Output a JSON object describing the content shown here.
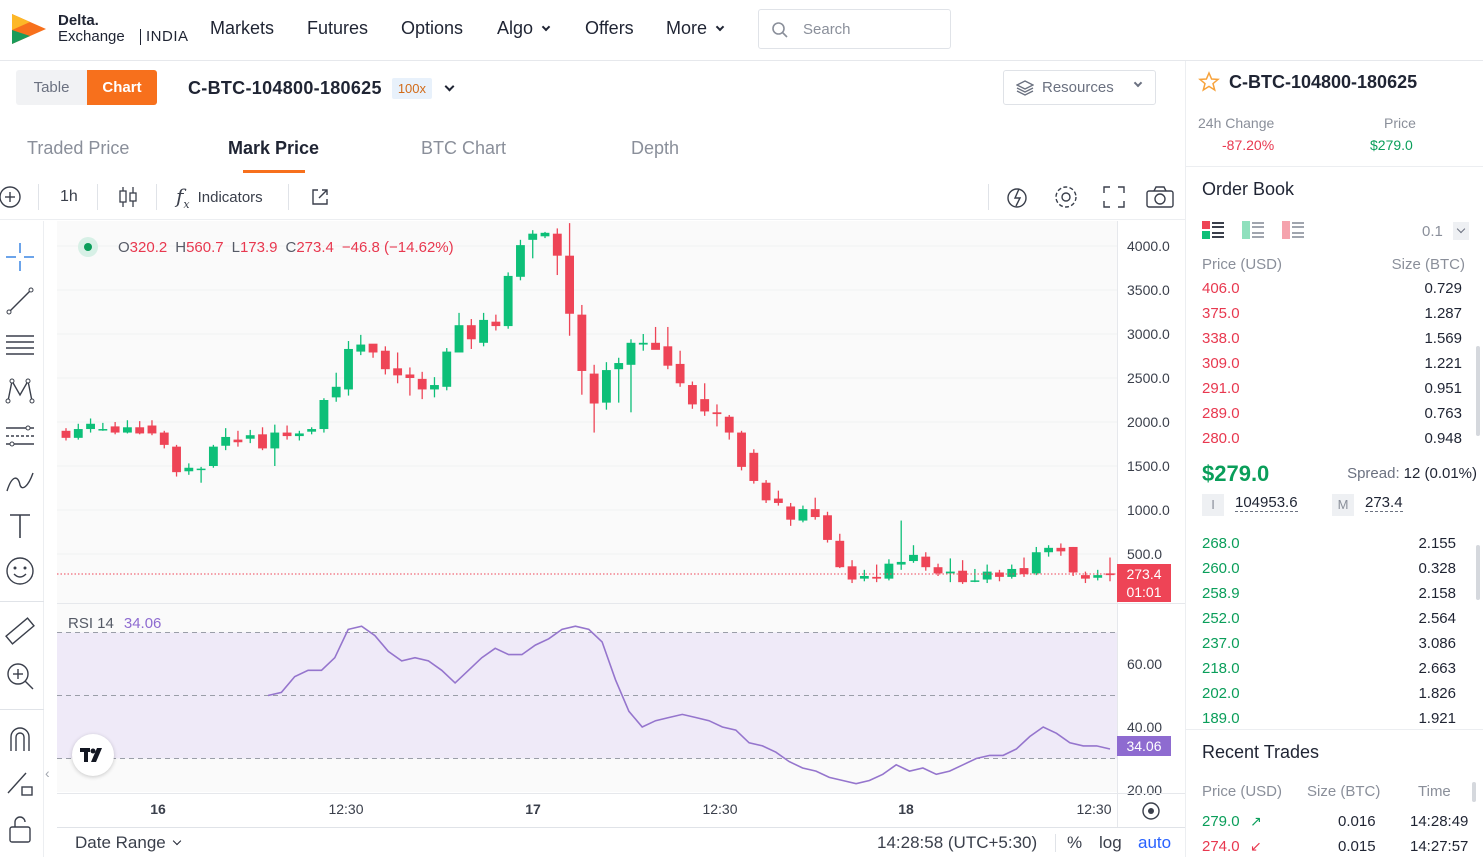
{
  "brand": {
    "name": "Delta.",
    "sub": "Exchange",
    "region": "INDIA"
  },
  "nav": [
    {
      "label": "Markets",
      "dropdown": false
    },
    {
      "label": "Futures",
      "dropdown": false
    },
    {
      "label": "Options",
      "dropdown": false
    },
    {
      "label": "Algo",
      "dropdown": true
    },
    {
      "label": "Offers",
      "dropdown": false
    },
    {
      "label": "More",
      "dropdown": true
    }
  ],
  "search": {
    "placeholder": "Search"
  },
  "view_toggle": {
    "table": "Table",
    "chart": "Chart"
  },
  "symbol": {
    "name": "C-BTC-104800-180625",
    "leverage": "100x"
  },
  "resources": {
    "label": "Resources"
  },
  "chart_tabs": [
    "Traded Price",
    "Mark Price",
    "BTC Chart",
    "Depth"
  ],
  "active_tab": "Mark Price",
  "chart_toolbar": {
    "interval": "1h",
    "indicators": "Indicators"
  },
  "ohlc": {
    "o_label": "O",
    "o": "320.2",
    "h_label": "H",
    "h": "560.7",
    "l_label": "L",
    "l": "173.9",
    "c_label": "C",
    "c": "273.4",
    "change": "−46.8 (−14.62%)"
  },
  "rsi": {
    "label": "RSI 14",
    "value": "34.06"
  },
  "price_badge": {
    "price": "273.4",
    "timer": "01:01"
  },
  "price_axis": [
    "4000.0",
    "3500.0",
    "3000.0",
    "2500.0",
    "2000.0",
    "1500.0",
    "1000.0",
    "500.0"
  ],
  "rsi_axis": [
    "60.00",
    "40.00",
    "20.00"
  ],
  "time_axis": [
    "16",
    "12:30",
    "17",
    "12:30",
    "18",
    "12:30"
  ],
  "bottom_bar": {
    "date_range": "Date Range",
    "clock": "14:28:58 (UTC+5:30)",
    "pct": "%",
    "log": "log",
    "auto": "auto"
  },
  "colors": {
    "up": "#0dbf78",
    "down": "#ee4456",
    "accent": "#f7701c",
    "rsi": "#9575cd"
  },
  "chart_data": {
    "type": "candlestick",
    "title": "",
    "xlabel": "",
    "ylabel": "",
    "ylim": [
      0,
      4200
    ],
    "x_ticks": [
      "16",
      "12:30",
      "17",
      "12:30",
      "18",
      "12:30"
    ],
    "candles": [
      [
        1900,
        1820,
        1930,
        1790
      ],
      [
        1820,
        1920,
        1980,
        1800
      ],
      [
        1920,
        1980,
        2040,
        1880
      ],
      [
        1920,
        1920,
        1990,
        1900
      ],
      [
        1950,
        1880,
        2000,
        1860
      ],
      [
        1880,
        1940,
        2020,
        1870
      ],
      [
        1940,
        1870,
        2010,
        1860
      ],
      [
        1960,
        1870,
        2020,
        1850
      ],
      [
        1880,
        1740,
        1900,
        1700
      ],
      [
        1720,
        1430,
        1740,
        1380
      ],
      [
        1440,
        1480,
        1530,
        1400
      ],
      [
        1460,
        1470,
        1490,
        1310
      ],
      [
        1500,
        1720,
        1740,
        1480
      ],
      [
        1730,
        1830,
        1930,
        1680
      ],
      [
        1800,
        1770,
        1900,
        1720
      ],
      [
        1810,
        1850,
        1910,
        1760
      ],
      [
        1860,
        1700,
        1940,
        1680
      ],
      [
        1700,
        1880,
        1970,
        1500
      ],
      [
        1880,
        1840,
        1960,
        1800
      ],
      [
        1840,
        1870,
        1900,
        1790
      ],
      [
        1890,
        1920,
        1940,
        1860
      ],
      [
        1920,
        2250,
        2270,
        1880
      ],
      [
        2280,
        2400,
        2560,
        2230
      ],
      [
        2370,
        2830,
        2920,
        2300
      ],
      [
        2800,
        2880,
        2990,
        2760
      ],
      [
        2890,
        2790,
        2870,
        2730
      ],
      [
        2810,
        2600,
        2860,
        2540
      ],
      [
        2610,
        2530,
        2790,
        2440
      ],
      [
        2540,
        2500,
        2620,
        2300
      ],
      [
        2490,
        2370,
        2570,
        2260
      ],
      [
        2370,
        2420,
        2510,
        2280
      ],
      [
        2400,
        2800,
        2840,
        2360
      ],
      [
        2790,
        3100,
        3240,
        3070
      ],
      [
        3100,
        2940,
        3170,
        2830
      ],
      [
        2900,
        3160,
        3240,
        2860
      ],
      [
        3140,
        3090,
        3220,
        3040
      ],
      [
        3090,
        3660,
        3700,
        3060
      ],
      [
        3650,
        4010,
        4070,
        3610
      ],
      [
        4070,
        4140,
        4180,
        3860
      ],
      [
        4110,
        4150,
        4160,
        4090
      ],
      [
        4140,
        3890,
        4200,
        3670
      ],
      [
        3890,
        3230,
        4260,
        2980
      ],
      [
        3220,
        2580,
        3330,
        2310
      ],
      [
        2550,
        2210,
        2650,
        1880
      ],
      [
        2220,
        2590,
        2680,
        2140
      ],
      [
        2600,
        2670,
        2730,
        2220
      ],
      [
        2650,
        2900,
        2940,
        2110
      ],
      [
        2880,
        2900,
        3000,
        2810
      ],
      [
        2900,
        2820,
        3080,
        2830
      ],
      [
        2860,
        2640,
        3080,
        2600
      ],
      [
        2660,
        2440,
        2810,
        2400
      ],
      [
        2420,
        2200,
        2460,
        2150
      ],
      [
        2260,
        2120,
        2440,
        2070
      ],
      [
        2110,
        2090,
        2200,
        1950
      ],
      [
        2060,
        1880,
        2080,
        1800
      ],
      [
        1880,
        1490,
        1900,
        1450
      ],
      [
        1650,
        1330,
        1690,
        1300
      ],
      [
        1310,
        1110,
        1340,
        1080
      ],
      [
        1130,
        1080,
        1220,
        1050
      ],
      [
        1040,
        890,
        1080,
        820
      ],
      [
        880,
        1010,
        1050,
        860
      ],
      [
        1010,
        920,
        1140,
        890
      ],
      [
        940,
        660,
        980,
        630
      ],
      [
        650,
        350,
        730,
        340
      ],
      [
        360,
        210,
        430,
        170
      ],
      [
        220,
        250,
        320,
        190
      ],
      [
        240,
        220,
        380,
        180
      ],
      [
        220,
        390,
        440,
        200
      ],
      [
        380,
        410,
        880,
        320
      ],
      [
        420,
        490,
        600,
        400
      ],
      [
        470,
        350,
        520,
        310
      ],
      [
        350,
        280,
        390,
        250
      ],
      [
        280,
        300,
        450,
        180
      ],
      [
        310,
        180,
        430,
        160
      ],
      [
        200,
        200,
        330,
        180
      ],
      [
        210,
        300,
        380,
        170
      ],
      [
        290,
        240,
        320,
        190
      ],
      [
        240,
        330,
        380,
        220
      ],
      [
        340,
        270,
        460,
        240
      ],
      [
        280,
        520,
        580,
        260
      ],
      [
        520,
        570,
        600,
        470
      ],
      [
        570,
        530,
        620,
        480
      ],
      [
        580,
        290,
        580,
        250
      ],
      [
        260,
        220,
        300,
        170
      ],
      [
        230,
        260,
        320,
        200
      ],
      [
        280,
        260,
        460,
        190
      ]
    ],
    "rsi_series": {
      "name": "RSI 14",
      "ylim": [
        16,
        78
      ],
      "values": [
        50,
        51,
        56,
        58,
        58,
        62,
        71,
        72,
        69,
        64,
        61,
        62,
        61,
        58,
        54,
        58,
        62,
        65,
        63,
        63,
        66,
        68,
        71,
        72,
        71,
        67,
        55,
        45,
        40,
        42,
        43,
        44,
        43,
        42,
        40,
        39,
        35,
        34,
        32,
        29,
        27,
        26,
        24,
        23,
        22,
        23,
        25,
        28,
        26,
        27,
        25,
        26,
        28,
        30,
        31,
        31,
        33,
        37,
        40,
        38,
        35,
        34,
        34,
        33
      ]
    }
  },
  "right_panel": {
    "symbol": "C-BTC-104800-180625",
    "change_label": "24h Change",
    "change_value": "-87.20%",
    "price_label": "Price",
    "price_value": "$279.0"
  },
  "order_book": {
    "title": "Order Book",
    "tick": "0.1",
    "price_header": "Price (USD)",
    "size_header": "Size (BTC)",
    "asks": [
      {
        "price": "406.0",
        "size": "0.729"
      },
      {
        "price": "375.0",
        "size": "1.287"
      },
      {
        "price": "338.0",
        "size": "1.569"
      },
      {
        "price": "309.0",
        "size": "1.221"
      },
      {
        "price": "291.0",
        "size": "0.951"
      },
      {
        "price": "289.0",
        "size": "0.763"
      },
      {
        "price": "280.0",
        "size": "0.948"
      }
    ],
    "last_price": "$279.0",
    "spread_label": "Spread:",
    "spread_value": "12 (0.01%)",
    "index_label": "I",
    "index_value": "104953.6",
    "mark_label": "M",
    "mark_value": "273.4",
    "bids": [
      {
        "price": "268.0",
        "size": "2.155"
      },
      {
        "price": "260.0",
        "size": "0.328"
      },
      {
        "price": "258.9",
        "size": "2.158"
      },
      {
        "price": "252.0",
        "size": "2.564"
      },
      {
        "price": "237.0",
        "size": "3.086"
      },
      {
        "price": "218.0",
        "size": "2.663"
      },
      {
        "price": "202.0",
        "size": "1.826"
      },
      {
        "price": "189.0",
        "size": "1.921"
      }
    ]
  },
  "recent_trades": {
    "title": "Recent Trades",
    "price_header": "Price (USD)",
    "size_header": "Size (BTC)",
    "time_header": "Time",
    "rows": [
      {
        "price": "279.0",
        "size": "0.016",
        "time": "14:28:49",
        "dir": "up"
      },
      {
        "price": "274.0",
        "size": "0.015",
        "time": "14:27:57",
        "dir": "down"
      }
    ]
  }
}
